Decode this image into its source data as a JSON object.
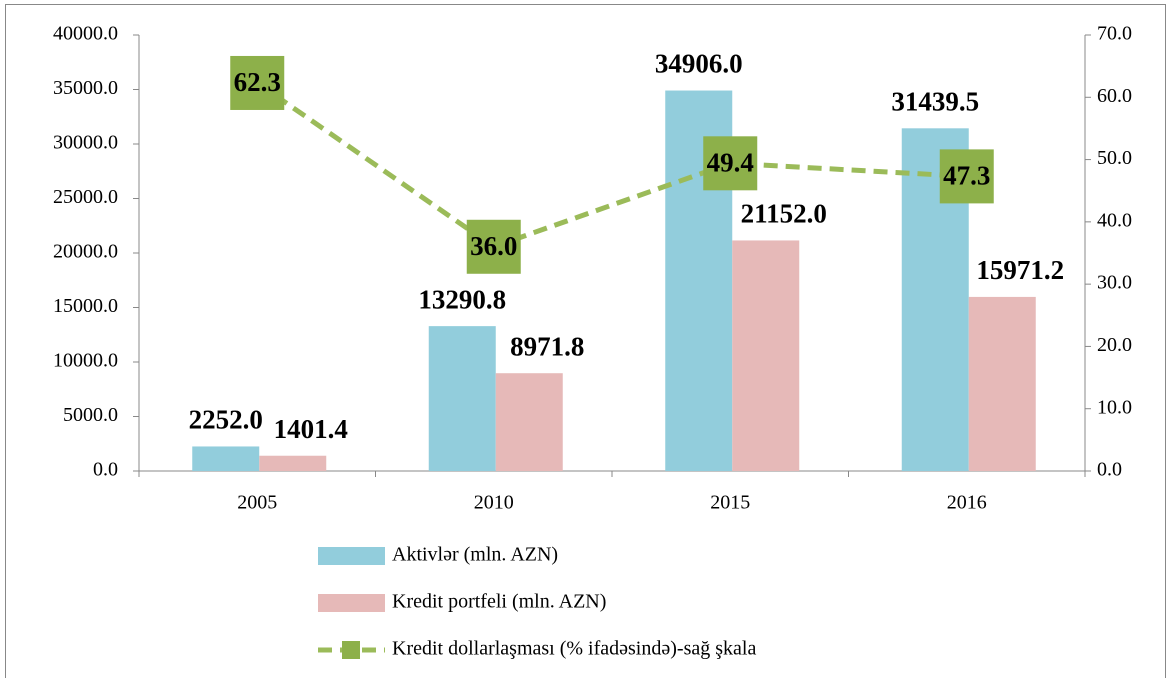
{
  "chart_data": {
    "type": "bar",
    "categories": [
      "2005",
      "2010",
      "2015",
      "2016"
    ],
    "series": [
      {
        "name": "Aktivlər (mln. AZN)",
        "type": "bar",
        "color": "#92cddc",
        "values": [
          2252.0,
          13290.8,
          34906.0,
          31439.5
        ],
        "value_labels": [
          "2252.0",
          "13290.8",
          "34906.0",
          "31439.5"
        ]
      },
      {
        "name": "Kredit portfeli (mln. AZN)",
        "type": "bar",
        "color": "#e6b9b8",
        "values": [
          1401.4,
          8971.8,
          21152.0,
          15971.2
        ],
        "value_labels": [
          "1401.4",
          "8971.8",
          "21152.0",
          "15971.2"
        ]
      },
      {
        "name": "Kredit dollarlaşması (% ifadəsində)-sağ şkala",
        "type": "line",
        "axis": "y2",
        "color": "#9bbb59",
        "marker_color": "#8db04a",
        "values": [
          62.3,
          36.0,
          49.4,
          47.3
        ],
        "value_labels": [
          "62.3",
          "36.0",
          "49.4",
          "47.3"
        ]
      }
    ],
    "ylim": [
      0,
      40000
    ],
    "yticks": [
      {
        "value": 0,
        "label": "0.0"
      },
      {
        "value": 5000,
        "label": "5000.0"
      },
      {
        "value": 10000,
        "label": "10000.0"
      },
      {
        "value": 15000,
        "label": "15000.0"
      },
      {
        "value": 20000,
        "label": "20000.0"
      },
      {
        "value": 25000,
        "label": "25000.0"
      },
      {
        "value": 30000,
        "label": "30000.0"
      },
      {
        "value": 35000,
        "label": "35000.0"
      },
      {
        "value": 40000,
        "label": "40000.0"
      }
    ],
    "y2lim": [
      0,
      70
    ],
    "y2ticks": [
      {
        "value": 0,
        "label": "0.0"
      },
      {
        "value": 10,
        "label": "10.0"
      },
      {
        "value": 20,
        "label": "20.0"
      },
      {
        "value": 30,
        "label": "30.0"
      },
      {
        "value": 40,
        "label": "40.0"
      },
      {
        "value": 50,
        "label": "50.0"
      },
      {
        "value": 60,
        "label": "60.0"
      },
      {
        "value": 70,
        "label": "70.0"
      }
    ],
    "grid": false,
    "legend": "bottom"
  }
}
